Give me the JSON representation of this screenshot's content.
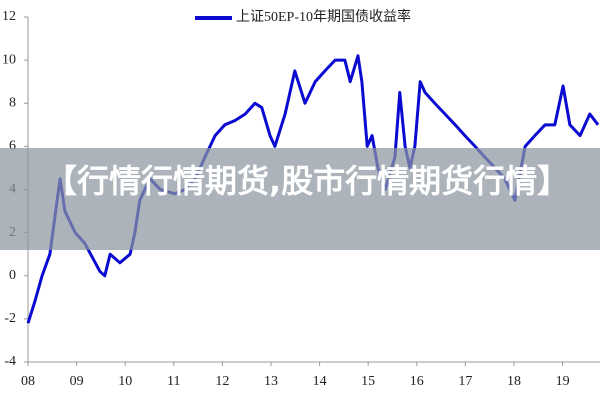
{
  "chart_data": {
    "type": "line",
    "x": [
      2008.0,
      2008.14,
      2008.29,
      2008.45,
      2008.66,
      2008.76,
      2008.97,
      2009.17,
      2009.48,
      2009.58,
      2009.69,
      2009.89,
      2010.1,
      2010.2,
      2010.3,
      2010.51,
      2010.72,
      2011.02,
      2011.23,
      2011.44,
      2011.64,
      2011.85,
      2012.05,
      2012.26,
      2012.47,
      2012.67,
      2012.81,
      2012.98,
      2013.08,
      2013.29,
      2013.49,
      2013.7,
      2013.91,
      2014.11,
      2014.32,
      2014.52,
      2014.63,
      2014.79,
      2014.87,
      2014.98,
      2015.08,
      2015.2,
      2015.35,
      2015.55,
      2015.65,
      2015.76,
      2015.86,
      2015.96,
      2016.07,
      2016.17,
      2016.37,
      2016.58,
      2016.79,
      2016.99,
      2017.2,
      2017.4,
      2017.61,
      2017.81,
      2018.02,
      2018.23,
      2018.43,
      2018.64,
      2018.84,
      2019.01,
      2019.15,
      2019.36,
      2019.56,
      2019.73
    ],
    "series": [
      {
        "name": "上证50EP-10年期国债收益率",
        "color": "#0a0ad0",
        "values": [
          -2.2,
          -1.2,
          0,
          1,
          4.5,
          3,
          2,
          1.5,
          0.2,
          0,
          1,
          0.6,
          1,
          2,
          3.5,
          4.5,
          4,
          3.8,
          4,
          4.5,
          5.5,
          6.5,
          7,
          7.2,
          7.5,
          8,
          7.8,
          6.5,
          6,
          7.5,
          9.5,
          8,
          9,
          9.5,
          10,
          10,
          9,
          10.2,
          9,
          6,
          6.5,
          5,
          4,
          5.5,
          8.5,
          6,
          5,
          6,
          9,
          8.5,
          8,
          7.5,
          7,
          6.5,
          6,
          5.5,
          5,
          4.5,
          3.5,
          6,
          6.5,
          7,
          7,
          8.8,
          7,
          6.5,
          7.5,
          7
        ]
      }
    ],
    "xlim": [
      2008,
      2019.77
    ],
    "xticks": [
      {
        "value": 2008,
        "label": "08"
      },
      {
        "value": 2009,
        "label": "09"
      },
      {
        "value": 2010,
        "label": "10"
      },
      {
        "value": 2011,
        "label": "11"
      },
      {
        "value": 2012,
        "label": "12"
      },
      {
        "value": 2013,
        "label": "13"
      },
      {
        "value": 2014,
        "label": "14"
      },
      {
        "value": 2015,
        "label": "15"
      },
      {
        "value": 2016,
        "label": "16"
      },
      {
        "value": 2017,
        "label": "17"
      },
      {
        "value": 2018,
        "label": "18"
      },
      {
        "value": 2019,
        "label": "19"
      }
    ],
    "ylim": [
      -4,
      12
    ],
    "yticks": [
      -4,
      -2,
      0,
      2,
      4,
      6,
      8,
      10,
      12
    ],
    "grid": false
  },
  "banner": {
    "text": "【行情行情期货,股市行情期货行情】"
  }
}
